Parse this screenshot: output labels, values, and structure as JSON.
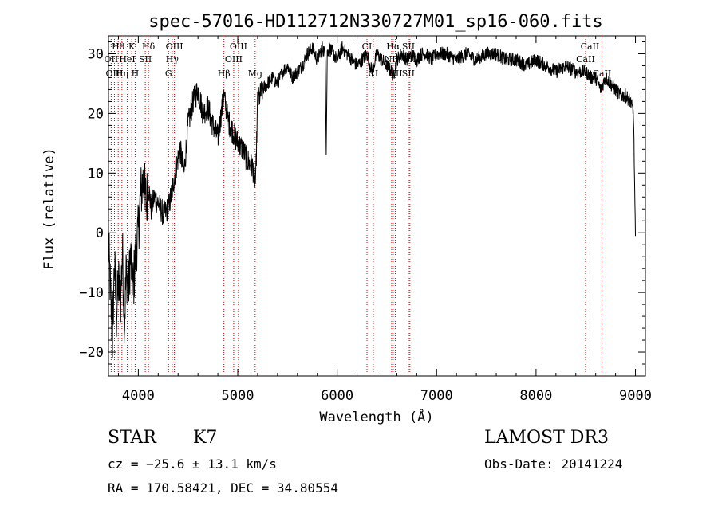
{
  "chart_data": {
    "type": "line",
    "title": "spec-57016-HD112712N330727M01_sp16-060.fits",
    "xlabel": "Wavelength (Å)",
    "ylabel": "Flux (relative)",
    "xlim": [
      3700,
      9100
    ],
    "ylim": [
      -24,
      33
    ],
    "xticks": [
      4000,
      5000,
      6000,
      7000,
      8000,
      9000
    ],
    "xtick_labels": [
      "4000",
      "5000",
      "6000",
      "7000",
      "8000",
      "9000"
    ],
    "yticks": [
      -20,
      -10,
      0,
      10,
      20,
      30
    ],
    "ytick_labels": [
      "−20",
      "−10",
      "0",
      "10",
      "20",
      "30"
    ],
    "series": [
      {
        "name": "flux",
        "x": [
          3700,
          3720,
          3740,
          3760,
          3780,
          3800,
          3820,
          3840,
          3860,
          3880,
          3900,
          3920,
          3950,
          3980,
          4000,
          4020,
          4050,
          4080,
          4100,
          4130,
          4160,
          4200,
          4250,
          4300,
          4340,
          4380,
          4420,
          4460,
          4500,
          4550,
          4600,
          4650,
          4700,
          4750,
          4800,
          4860,
          4900,
          4950,
          5000,
          5050,
          5100,
          5150,
          5180,
          5200,
          5250,
          5300,
          5350,
          5400,
          5450,
          5500,
          5550,
          5600,
          5650,
          5700,
          5750,
          5800,
          5850,
          5880,
          5890,
          5900,
          5920,
          5960,
          6000,
          6050,
          6100,
          6150,
          6200,
          6250,
          6300,
          6350,
          6400,
          6450,
          6500,
          6550,
          6562,
          6600,
          6650,
          6700,
          6750,
          6800,
          6850,
          6900,
          6950,
          7000,
          7100,
          7200,
          7300,
          7400,
          7500,
          7600,
          7700,
          7800,
          7900,
          8000,
          8100,
          8200,
          8300,
          8400,
          8500,
          8550,
          8600,
          8650,
          8700,
          8750,
          8800,
          8850,
          8900,
          8950,
          8980,
          9000
        ],
        "values": [
          -2,
          -10,
          -18,
          -5,
          -14,
          -8,
          -12,
          -3,
          -15,
          -6,
          -10,
          -4,
          -9,
          -2,
          0,
          6,
          9,
          5,
          8,
          4,
          6,
          5,
          3,
          4,
          7,
          11,
          14,
          10,
          18,
          22,
          24,
          20,
          21,
          18,
          16,
          23,
          19,
          17,
          15,
          14,
          12,
          11,
          8,
          22,
          24,
          25,
          26,
          25,
          27,
          28,
          26,
          27,
          28,
          30,
          31,
          29,
          31,
          30,
          14,
          30,
          31,
          30,
          29,
          31,
          30,
          29,
          28,
          29,
          30,
          27,
          30,
          29,
          28,
          27,
          26,
          29,
          30,
          29,
          30,
          29,
          30,
          30,
          29,
          30,
          30,
          29,
          30,
          29,
          30,
          30,
          29,
          29,
          28,
          29,
          28,
          27,
          28,
          27,
          27,
          26,
          26,
          24,
          26,
          25,
          24,
          23,
          23,
          22,
          20,
          -1
        ]
      }
    ],
    "spectral_lines": [
      {
        "label": "Hθ",
        "wavelength": 3798,
        "row": 1
      },
      {
        "label": "K",
        "wavelength": 3934,
        "row": 1
      },
      {
        "label": "Hδ",
        "wavelength": 4102,
        "row": 1
      },
      {
        "label": "OIII",
        "wavelength": 4363,
        "row": 1
      },
      {
        "label": "OIII",
        "wavelength": 5007,
        "row": 1
      },
      {
        "label": "CI",
        "wavelength": 6300,
        "row": 1
      },
      {
        "label": "Hα",
        "wavelength": 6563,
        "row": 1
      },
      {
        "label": "SII",
        "wavelength": 6717,
        "row": 1
      },
      {
        "label": "CaII",
        "wavelength": 8542,
        "row": 1
      },
      {
        "label": "OII",
        "wavelength": 3727,
        "row": 2
      },
      {
        "label": "HeI",
        "wavelength": 3889,
        "row": 2
      },
      {
        "label": "SII",
        "wavelength": 4070,
        "row": 2
      },
      {
        "label": "Hγ",
        "wavelength": 4341,
        "row": 2
      },
      {
        "label": "OIII",
        "wavelength": 4959,
        "row": 2
      },
      {
        "label": "NII",
        "wavelength": 6548,
        "row": 2
      },
      {
        "label": "SII",
        "wavelength": 6731,
        "row": 2
      },
      {
        "label": "CaII",
        "wavelength": 8498,
        "row": 2
      },
      {
        "label": "OIII",
        "wavelength": 3760,
        "row": 3
      },
      {
        "label": "Hη",
        "wavelength": 3835,
        "row": 3
      },
      {
        "label": "H",
        "wavelength": 3968,
        "row": 3
      },
      {
        "label": "G",
        "wavelength": 4304,
        "row": 3
      },
      {
        "label": "Hβ",
        "wavelength": 4861,
        "row": 3
      },
      {
        "label": "Mg",
        "wavelength": 5175,
        "row": 3
      },
      {
        "label": "CI",
        "wavelength": 6363,
        "row": 3
      },
      {
        "label": "NII",
        "wavelength": 6584,
        "row": 3
      },
      {
        "label": "SII",
        "wavelength": 6716,
        "row": 3
      },
      {
        "label": "CaII",
        "wavelength": 8662,
        "row": 3
      }
    ]
  },
  "info": {
    "object_class": "STAR",
    "subclass": "K7",
    "survey": "LAMOST DR3",
    "redshift_line": "cz = −25.6 ± 13.1 km/s",
    "obs_date_line": "Obs-Date: 20141224",
    "coords_line": "RA = 170.58421, DEC =  34.80554"
  },
  "colors": {
    "line": "#000000",
    "marker": "#cc0000"
  }
}
